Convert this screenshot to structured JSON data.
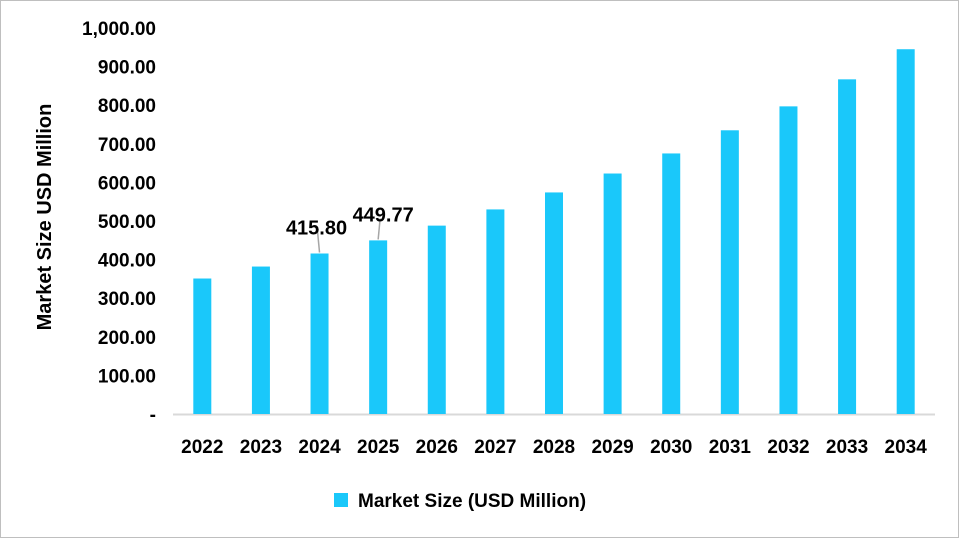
{
  "chart_data": {
    "type": "bar",
    "title": "",
    "xlabel": "",
    "ylabel": "Market Size USD Million",
    "ylim": [
      0,
      1000
    ],
    "yticks": [
      "-",
      "100.00",
      "200.00",
      "300.00",
      "400.00",
      "500.00",
      "600.00",
      "700.00",
      "800.00",
      "900.00",
      "1,000.00"
    ],
    "categories": [
      "2022",
      "2023",
      "2024",
      "2025",
      "2026",
      "2027",
      "2028",
      "2029",
      "2030",
      "2031",
      "2032",
      "2033",
      "2034"
    ],
    "series": [
      {
        "name": "Market Size (USD Million)",
        "color": "#1AC8FA",
        "values": [
          351,
          382,
          415.8,
          449.77,
          488,
          530,
          574,
          623,
          675,
          735,
          797,
          867,
          945
        ]
      }
    ],
    "data_labels": [
      {
        "category": "2024",
        "text": "415.80"
      },
      {
        "category": "2025",
        "text": "449.77"
      }
    ],
    "grid": false,
    "legend": "bottom"
  }
}
